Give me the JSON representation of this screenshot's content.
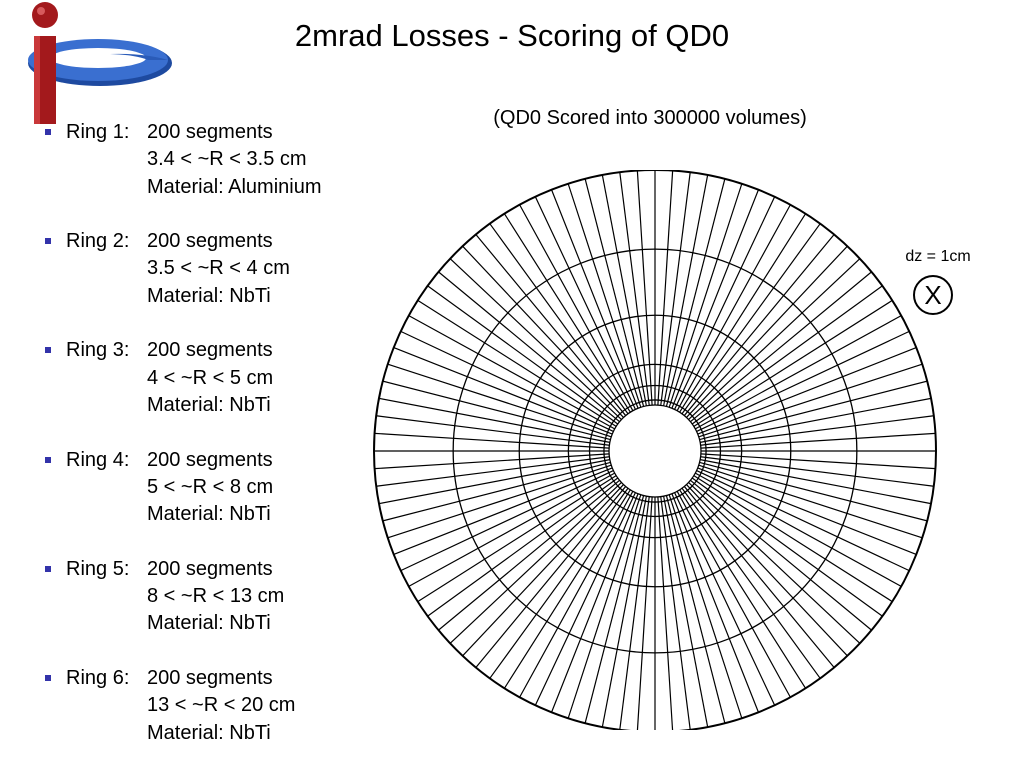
{
  "slide": {
    "title": "2mrad Losses - Scoring of QD0",
    "caption": "(QD0 Scored into 300000 volumes)"
  },
  "colors": {
    "logo_blue": "#2a5bb8",
    "logo_red": "#a3191c",
    "bullet": "#3333aa",
    "lines": "#000000"
  },
  "rings": [
    {
      "label": "Ring 1:",
      "segments": "200 segments",
      "radius": "3.4 < ~R < 3.5 cm",
      "material": "Material: Aluminium"
    },
    {
      "label": "Ring 2:",
      "segments": "200 segments",
      "radius": "3.5 < ~R < 4 cm",
      "material": "Material: NbTi"
    },
    {
      "label": "Ring 3:",
      "segments": "200 segments",
      "radius": "4 < ~R < 5 cm",
      "material": "Material: NbTi"
    },
    {
      "label": "Ring 4:",
      "segments": "200 segments",
      "radius": "5 < ~R < 8 cm",
      "material": "Material: NbTi"
    },
    {
      "label": "Ring 5:",
      "segments": "200 segments",
      "radius": "8 < ~R < 13 cm",
      "material": "Material: NbTi"
    },
    {
      "label": "Ring 6:",
      "segments": "200 segments",
      "radius": "13 < ~R < 20 cm",
      "material": "Material: NbTi"
    }
  ],
  "diagram": {
    "ring_boundaries_cm": [
      3.4,
      3.5,
      4,
      5,
      8,
      13,
      20
    ],
    "radial_spokes_drawn": 100
  },
  "dz": {
    "label": "dz = 1cm",
    "marker": "X"
  }
}
